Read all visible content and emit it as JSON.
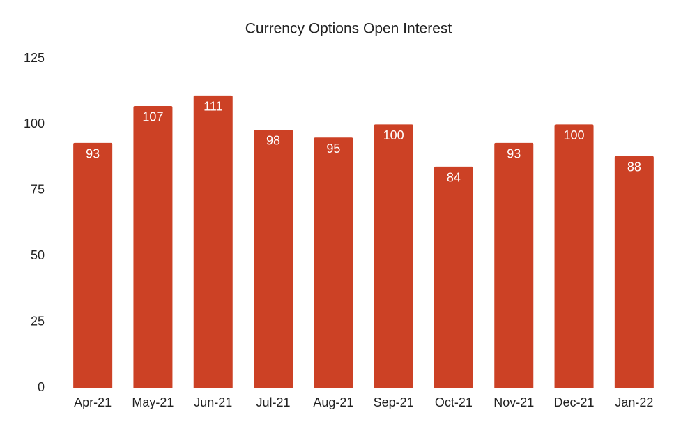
{
  "chart_data": {
    "type": "bar",
    "title": "Currency Options Open Interest",
    "categories": [
      "Apr-21",
      "May-21",
      "Jun-21",
      "Jul-21",
      "Aug-21",
      "Sep-21",
      "Oct-21",
      "Nov-21",
      "Dec-21",
      "Jan-22"
    ],
    "values": [
      93,
      107,
      111,
      98,
      95,
      100,
      84,
      93,
      100,
      88
    ],
    "color": "#cc4125",
    "ylim": [
      0,
      125
    ],
    "yticks": [
      0,
      25,
      50,
      75,
      100,
      125
    ],
    "grid": false
  }
}
